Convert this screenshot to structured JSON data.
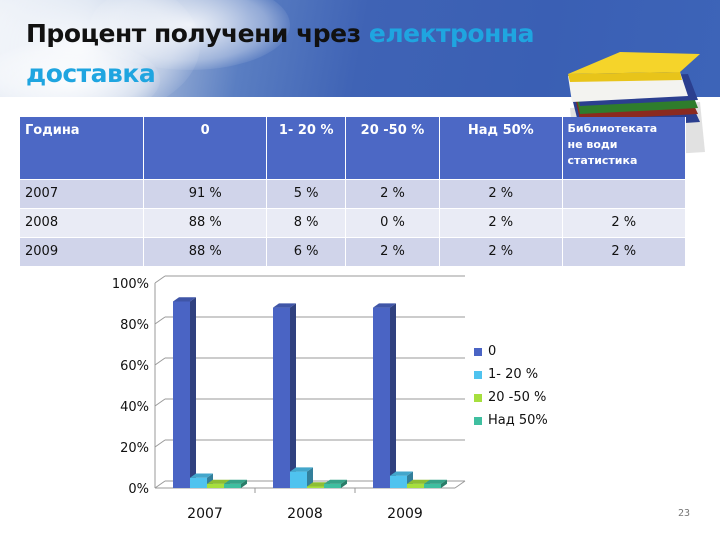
{
  "slide": {
    "title_part1": "Процент получени чрез ",
    "title_part2": "електронна",
    "title_part3": "доставка",
    "page_number": "23",
    "colors": {
      "title_text": "#111111",
      "title_highlight": "#1fa5e0",
      "table_header": "#4c68c5",
      "row_odd": "#d0d4ea",
      "row_even": "#e9ebf5"
    }
  },
  "table": {
    "headers": [
      "Година",
      "0",
      "1- 20 %",
      "20 -50 %",
      "Над 50%",
      "Библиотеката не води статистика"
    ],
    "header_last_lines": [
      "Библиотеката",
      "не води",
      "статистика"
    ],
    "rows": [
      [
        "2007",
        "91 %",
        "5 %",
        "2 %",
        "2 %",
        ""
      ],
      [
        "2008",
        "88 %",
        "8 %",
        "0 %",
        "2 %",
        "2 %"
      ],
      [
        "2009",
        "88 %",
        "6 %",
        "2 %",
        "2 %",
        "2 %"
      ]
    ]
  },
  "chart_data": {
    "type": "bar",
    "title": "",
    "xlabel": "",
    "ylabel": "",
    "categories": [
      "2007",
      "2008",
      "2009"
    ],
    "series": [
      {
        "name": "0",
        "values": [
          91,
          88,
          88
        ],
        "color": "#4a64c4"
      },
      {
        "name": "1- 20 %",
        "values": [
          5,
          8,
          6
        ],
        "color": "#4fc3ef"
      },
      {
        "name": "20 -50 %",
        "values": [
          2,
          0,
          2
        ],
        "color": "#a6df3e"
      },
      {
        "name": "Над 50%",
        "values": [
          2,
          2,
          2
        ],
        "color": "#3fbfa0"
      }
    ],
    "ylim": [
      0,
      100
    ],
    "yticks": [
      "0%",
      "20%",
      "40%",
      "60%",
      "80%",
      "100%"
    ],
    "grid": true,
    "style": "3d-clustered-column",
    "legend_position": "right"
  }
}
